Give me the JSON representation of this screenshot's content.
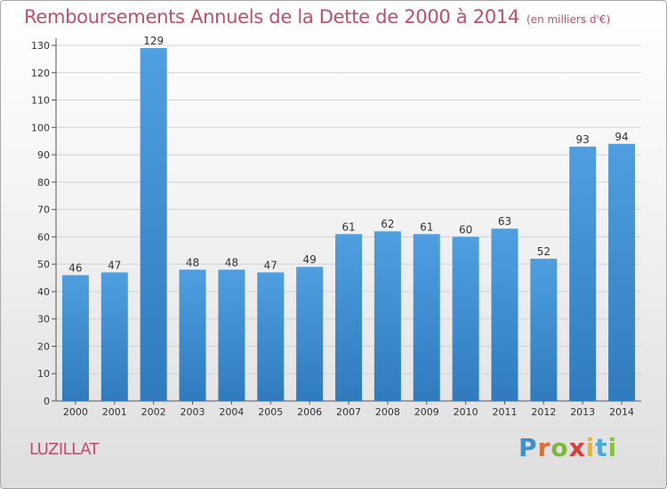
{
  "chart_data": {
    "type": "bar",
    "title": "Remboursements Annuels de la Dette de 2000 à 2014",
    "unit_note": "(en milliers d'€)",
    "categories": [
      "2000",
      "2001",
      "2002",
      "2003",
      "2004",
      "2005",
      "2006",
      "2007",
      "2008",
      "2009",
      "2010",
      "2011",
      "2012",
      "2013",
      "2014"
    ],
    "values": [
      46,
      47,
      129,
      48,
      48,
      47,
      49,
      61,
      62,
      61,
      60,
      63,
      52,
      93,
      94
    ],
    "ylim": [
      0,
      130
    ],
    "yticks": [
      0,
      10,
      20,
      30,
      40,
      50,
      60,
      70,
      80,
      90,
      100,
      110,
      120,
      130
    ],
    "grid": true,
    "bar_color": "#4f9fe0",
    "bar_dark_color": "#2f7bbd",
    "grid_color": "#d3d3d3"
  },
  "footer": {
    "commune": "LUZILLAT",
    "logo_text": "Proxiti"
  }
}
